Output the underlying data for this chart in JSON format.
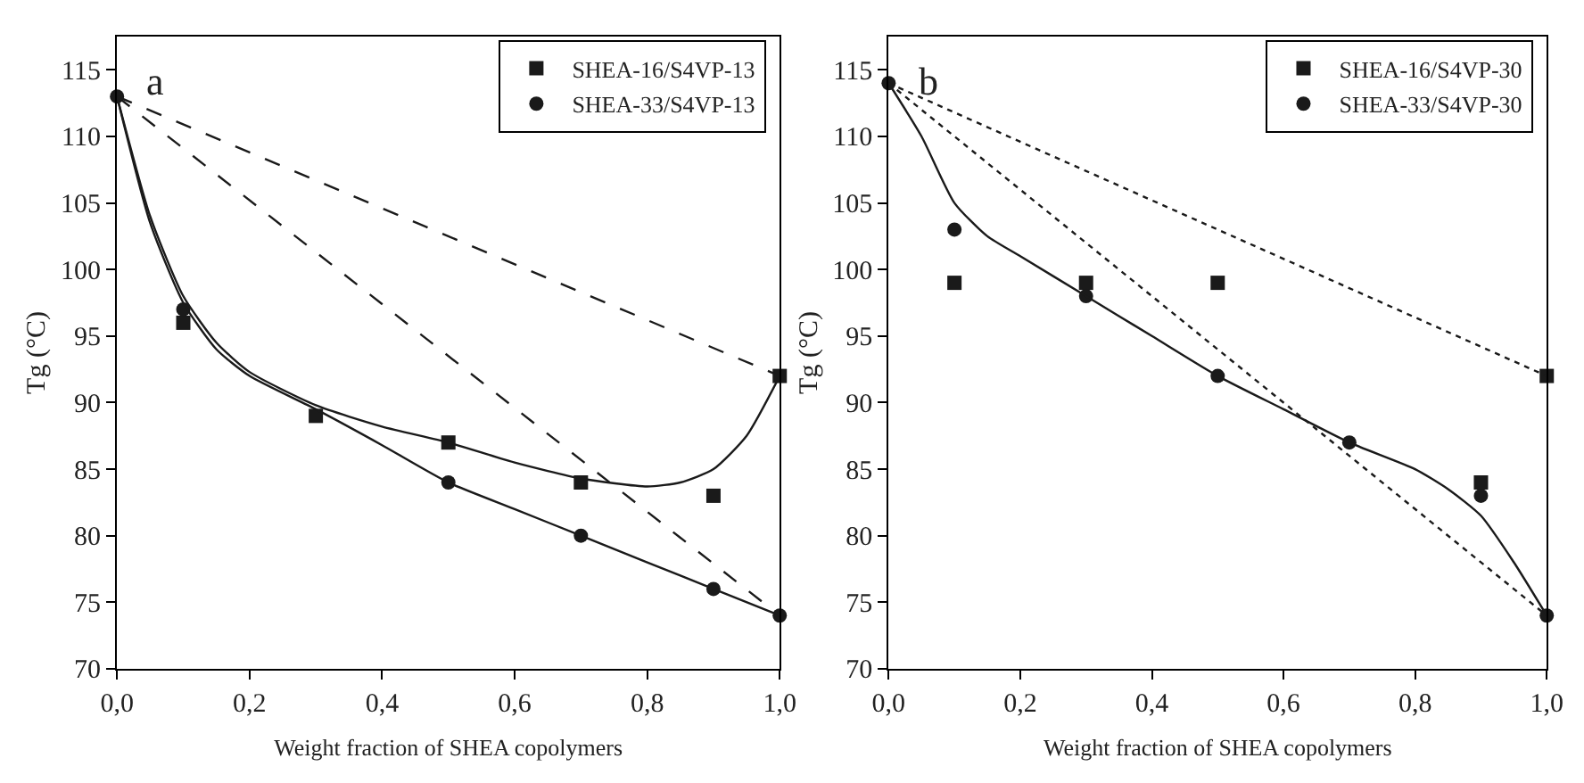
{
  "chart_data": [
    {
      "type": "scatter",
      "xlabel": "Weight fraction of SHEA copolymers",
      "ylabel": "Tg (°C)",
      "annotations": [
        "a"
      ],
      "x": [
        0,
        0.1,
        0.3,
        0.5,
        0.7,
        0.9,
        1.0
      ],
      "series": [
        {
          "name": "SHEA-16/S4VP-13",
          "color": "#1a1a1a",
          "marker": "square",
          "values": [
            null,
            96,
            89,
            87,
            84,
            83,
            92
          ]
        },
        {
          "name": "SHEA-33/S4VP-13",
          "color": "#1a1a1a",
          "marker": "circle",
          "values": [
            113,
            97,
            null,
            84,
            80,
            76,
            74
          ]
        },
        {
          "type": "line",
          "color": "#1a1a1a",
          "line_style": "solid",
          "x": [
            0,
            0.05,
            0.1,
            0.15,
            0.2,
            0.3,
            0.4,
            0.5,
            0.6,
            0.7,
            0.8,
            0.85,
            0.9,
            0.95,
            1.0
          ],
          "values": [
            113,
            104,
            98,
            94.5,
            92.3,
            89.8,
            88.2,
            87,
            85.5,
            84.3,
            83.7,
            84,
            85,
            87.5,
            92
          ]
        },
        {
          "type": "line",
          "color": "#1a1a1a",
          "line_style": "solid",
          "x": [
            0,
            0.05,
            0.1,
            0.15,
            0.2,
            0.3,
            0.4,
            0.5,
            0.6,
            0.7,
            0.8,
            0.9,
            1.0
          ],
          "values": [
            113,
            103.5,
            97.5,
            94,
            92,
            89.5,
            86.8,
            84,
            82,
            80,
            78,
            76,
            74
          ]
        },
        {
          "type": "line",
          "color": "#1a1a1a",
          "line_style": "dashed",
          "x": [
            0,
            1.0
          ],
          "values": [
            113,
            92
          ]
        },
        {
          "type": "line",
          "color": "#1a1a1a",
          "line_style": "dashed",
          "x": [
            0,
            1.0
          ],
          "values": [
            113,
            74
          ]
        }
      ],
      "xlim": [
        0,
        1.0
      ],
      "xticks": [
        {
          "value": 0,
          "label": "0,0"
        },
        {
          "value": 0.2,
          "label": "0,2"
        },
        {
          "value": 0.4,
          "label": "0,4"
        },
        {
          "value": 0.6,
          "label": "0,6"
        },
        {
          "value": 0.8,
          "label": "0,8"
        },
        {
          "value": 1.0,
          "label": "1,0"
        }
      ],
      "ylim": [
        70,
        117.5
      ],
      "yticks": [
        70,
        75,
        80,
        85,
        90,
        95,
        100,
        105,
        110,
        115
      ],
      "legend": "top right"
    },
    {
      "type": "scatter",
      "xlabel": "Weight fraction of SHEA copolymers",
      "ylabel": "Tg (°C)",
      "annotations": [
        "b"
      ],
      "x": [
        0,
        0.1,
        0.3,
        0.5,
        0.7,
        0.9,
        1.0
      ],
      "series": [
        {
          "name": "SHEA-16/S4VP-30",
          "color": "#1a1a1a",
          "marker": "square",
          "values": [
            null,
            99,
            99,
            99,
            null,
            84,
            92
          ]
        },
        {
          "name": "SHEA-33/S4VP-30",
          "color": "#1a1a1a",
          "marker": "circle",
          "values": [
            114,
            103,
            98,
            92,
            87,
            83,
            74
          ]
        },
        {
          "type": "line",
          "color": "#1a1a1a",
          "line_style": "solid",
          "x": [
            0,
            0.05,
            0.1,
            0.15,
            0.2,
            0.3,
            0.4,
            0.5,
            0.6,
            0.7,
            0.8,
            0.85,
            0.9,
            0.95,
            1.0
          ],
          "values": [
            114,
            110,
            105,
            102.5,
            101,
            98,
            95,
            92,
            89.5,
            87,
            85,
            83.5,
            81.5,
            78,
            74
          ]
        },
        {
          "type": "line",
          "color": "#1a1a1a",
          "line_style": "dotted",
          "x": [
            0,
            1.0
          ],
          "values": [
            114,
            92
          ]
        },
        {
          "type": "line",
          "color": "#1a1a1a",
          "line_style": "dotted",
          "x": [
            0,
            1.0
          ],
          "values": [
            114,
            74
          ]
        }
      ],
      "xlim": [
        0,
        1.0
      ],
      "xticks": [
        {
          "value": 0,
          "label": "0,0"
        },
        {
          "value": 0.2,
          "label": "0,2"
        },
        {
          "value": 0.4,
          "label": "0,4"
        },
        {
          "value": 0.6,
          "label": "0,6"
        },
        {
          "value": 0.8,
          "label": "0,8"
        },
        {
          "value": 1.0,
          "label": "1,0"
        }
      ],
      "ylim": [
        70,
        117.5
      ],
      "yticks": [
        70,
        75,
        80,
        85,
        90,
        95,
        100,
        105,
        110,
        115
      ],
      "legend": "top right"
    }
  ]
}
